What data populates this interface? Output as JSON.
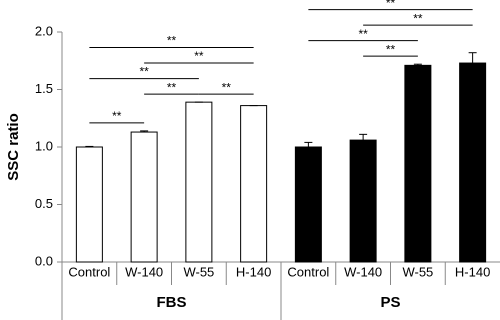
{
  "chart_data": {
    "type": "bar",
    "ylabel": "SSC ratio",
    "categories": [
      "Control",
      "W-140",
      "W-55",
      "H-140",
      "Control",
      "W-140",
      "W-55",
      "H-140"
    ],
    "groups": [
      {
        "label": "FBS",
        "color": "#ffffff"
      },
      {
        "label": "PS",
        "color": "#000000"
      }
    ],
    "values": [
      1.0,
      1.13,
      1.39,
      1.36,
      1.0,
      1.06,
      1.71,
      1.73
    ],
    "errors": [
      0.005,
      0.01,
      0,
      0,
      0.04,
      0.05,
      0.01,
      0.09
    ],
    "ylim": [
      0,
      2.0
    ],
    "yticks": [
      {
        "value": 0,
        "label": "0.0"
      },
      0.5,
      {
        "value": 1,
        "label": "1.0"
      },
      1.5,
      {
        "value": 2,
        "label": "2.0"
      }
    ],
    "significance": [
      {
        "pair": [
          0,
          1
        ],
        "label": "**"
      },
      {
        "pair": [
          1,
          2
        ],
        "label": "**"
      },
      {
        "pair": [
          2,
          3
        ],
        "label": "**"
      },
      {
        "pair": [
          0,
          2
        ],
        "label": "**"
      },
      {
        "pair": [
          1,
          3
        ],
        "label": "**"
      },
      {
        "pair": [
          0,
          3
        ],
        "label": "**"
      },
      {
        "pair": [
          5,
          6
        ],
        "label": "**"
      },
      {
        "pair": [
          4,
          6
        ],
        "label": "**"
      },
      {
        "pair": [
          5,
          7
        ],
        "label": "**"
      },
      {
        "pair": [
          4,
          7
        ],
        "label": "**"
      }
    ]
  }
}
